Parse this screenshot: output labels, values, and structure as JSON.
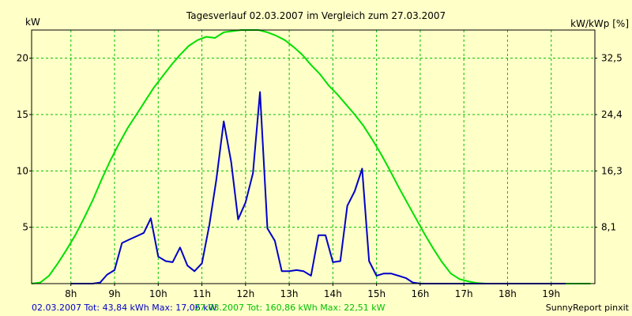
{
  "chart_data": {
    "type": "line",
    "title": "Tagesverlauf 02.03.2007 im Vergleich zum 27.03.2007",
    "ylabel_left": "kW",
    "ylabel_right": "kW/kWp [%]",
    "x_range": [
      7.1,
      20.0
    ],
    "ylim_left": [
      0,
      22.5
    ],
    "yticks_left": [
      5,
      10,
      15,
      20
    ],
    "yticks_right": [
      "8,1",
      "16,3",
      "24,4",
      "32,5"
    ],
    "xticks": [
      {
        "x": 8,
        "label": "8h"
      },
      {
        "x": 9,
        "label": "9h"
      },
      {
        "x": 10,
        "label": "10h"
      },
      {
        "x": 11,
        "label": "11h"
      },
      {
        "x": 12,
        "label": "12h"
      },
      {
        "x": 13,
        "label": "13h"
      },
      {
        "x": 14,
        "label": "14h"
      },
      {
        "x": 15,
        "label": "15h"
      },
      {
        "x": 16,
        "label": "16h"
      },
      {
        "x": 17,
        "label": "17h"
      },
      {
        "x": 18,
        "label": "18h"
      },
      {
        "x": 19,
        "label": "19h"
      }
    ],
    "grid": true,
    "series": [
      {
        "name": "02.03.2007",
        "color": "#0000c8",
        "x": [
          8.0,
          8.5,
          8.67,
          8.83,
          9.0,
          9.17,
          9.33,
          9.5,
          9.67,
          9.83,
          10.0,
          10.17,
          10.33,
          10.5,
          10.67,
          10.83,
          11.0,
          11.17,
          11.33,
          11.5,
          11.67,
          11.83,
          12.0,
          12.17,
          12.33,
          12.5,
          12.67,
          12.83,
          13.0,
          13.17,
          13.33,
          13.5,
          13.67,
          13.83,
          14.0,
          14.17,
          14.33,
          14.5,
          14.67,
          14.83,
          15.0,
          15.17,
          15.33,
          15.5,
          15.67,
          15.83,
          16.0,
          16.17,
          16.33,
          16.5,
          16.67,
          16.83,
          17.0,
          17.17,
          17.33,
          17.5,
          17.67,
          17.83,
          18.0,
          18.17,
          18.33,
          18.5,
          18.67,
          18.83,
          19.0,
          19.17,
          19.33
        ],
        "values": [
          0.0,
          0.0,
          0.1,
          0.8,
          1.2,
          3.6,
          3.9,
          4.2,
          4.5,
          5.8,
          2.4,
          2.0,
          1.9,
          3.2,
          1.6,
          1.1,
          1.8,
          5.2,
          9.2,
          14.4,
          10.8,
          5.7,
          7.2,
          9.8,
          17.0,
          4.9,
          3.8,
          1.1,
          1.1,
          1.2,
          1.1,
          0.7,
          4.3,
          4.3,
          1.9,
          2.0,
          6.9,
          8.2,
          10.2,
          2.0,
          0.7,
          0.9,
          0.9,
          0.7,
          0.5,
          0.1,
          0.0,
          0.0,
          0.0,
          0.0,
          0.0,
          0.0,
          0.0,
          0.0,
          0.0,
          0.0,
          0.0,
          0.0,
          0.0,
          0.0,
          0.0,
          0.0,
          0.0,
          0.0,
          0.0,
          0.0,
          0.0
        ]
      },
      {
        "name": "27.03.2007",
        "color": "#00e000",
        "x": [
          7.1,
          7.3,
          7.5,
          7.7,
          7.9,
          8.1,
          8.3,
          8.5,
          8.7,
          8.9,
          9.1,
          9.3,
          9.5,
          9.7,
          9.9,
          10.1,
          10.3,
          10.5,
          10.7,
          10.9,
          11.1,
          11.3,
          11.5,
          11.7,
          11.9,
          12.1,
          12.3,
          12.5,
          12.7,
          12.9,
          13.1,
          13.3,
          13.5,
          13.7,
          13.9,
          14.1,
          14.3,
          14.5,
          14.7,
          14.9,
          15.1,
          15.3,
          15.5,
          15.7,
          15.9,
          16.1,
          16.3,
          16.5,
          16.7,
          16.9,
          17.1,
          17.3,
          17.5,
          17.7,
          17.9,
          18.1,
          18.3,
          18.5,
          18.7,
          18.9,
          19.1,
          19.3,
          19.5,
          19.7,
          19.9
        ],
        "values": [
          0.0,
          0.1,
          0.7,
          1.8,
          3.0,
          4.3,
          5.8,
          7.4,
          9.2,
          10.9,
          12.4,
          13.8,
          15.0,
          16.2,
          17.4,
          18.4,
          19.4,
          20.3,
          21.1,
          21.6,
          21.9,
          21.8,
          22.3,
          22.4,
          22.5,
          22.5,
          22.5,
          22.3,
          22.0,
          21.6,
          21.0,
          20.3,
          19.4,
          18.6,
          17.6,
          16.8,
          15.9,
          15.0,
          14.0,
          12.8,
          11.5,
          10.1,
          8.6,
          7.2,
          5.8,
          4.4,
          3.1,
          1.9,
          0.9,
          0.4,
          0.2,
          0.05,
          0.0,
          0.0,
          0.0,
          0.0,
          0.0,
          0.0,
          0.0,
          0.0,
          0.0,
          0.0,
          0.0,
          0.0,
          0.0
        ]
      }
    ]
  },
  "footer": {
    "series1_stats": "02.03.2007 Tot: 43,84 kWh Max: 17,06 kW",
    "series2_stats": "27.03.2007 Tot: 160,86 kWh Max: 22,51 kW",
    "credit": "SunnyReport pinxit"
  }
}
